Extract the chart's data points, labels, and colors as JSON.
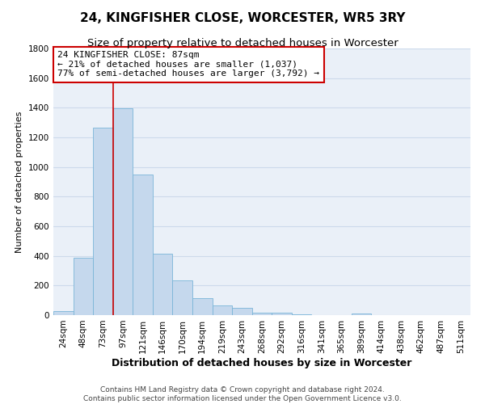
{
  "title": "24, KINGFISHER CLOSE, WORCESTER, WR5 3RY",
  "subtitle": "Size of property relative to detached houses in Worcester",
  "xlabel": "Distribution of detached houses by size in Worcester",
  "ylabel": "Number of detached properties",
  "bar_color": "#c5d8ed",
  "bar_edge_color": "#7ab5d8",
  "grid_color": "#cddaeb",
  "background_color": "#eaf0f8",
  "categories": [
    "24sqm",
    "48sqm",
    "73sqm",
    "97sqm",
    "121sqm",
    "146sqm",
    "170sqm",
    "194sqm",
    "219sqm",
    "243sqm",
    "268sqm",
    "292sqm",
    "316sqm",
    "341sqm",
    "365sqm",
    "389sqm",
    "414sqm",
    "438sqm",
    "462sqm",
    "487sqm",
    "511sqm"
  ],
  "values": [
    25,
    390,
    1265,
    1395,
    950,
    415,
    235,
    115,
    65,
    50,
    15,
    15,
    5,
    0,
    0,
    12,
    0,
    0,
    0,
    0,
    0
  ],
  "vline_x": 2.5,
  "vline_color": "#cc0000",
  "ylim": [
    0,
    1800
  ],
  "yticks": [
    0,
    200,
    400,
    600,
    800,
    1000,
    1200,
    1400,
    1600,
    1800
  ],
  "annotation_title": "24 KINGFISHER CLOSE: 87sqm",
  "annotation_line1": "← 21% of detached houses are smaller (1,037)",
  "annotation_line2": "77% of semi-detached houses are larger (3,792) →",
  "annotation_box_color": "#ffffff",
  "annotation_box_edge": "#cc0000",
  "footer_line1": "Contains HM Land Registry data © Crown copyright and database right 2024.",
  "footer_line2": "Contains public sector information licensed under the Open Government Licence v3.0.",
  "title_fontsize": 11,
  "subtitle_fontsize": 9.5,
  "xlabel_fontsize": 9,
  "ylabel_fontsize": 8,
  "tick_fontsize": 7.5,
  "annotation_fontsize": 8,
  "footer_fontsize": 6.5
}
